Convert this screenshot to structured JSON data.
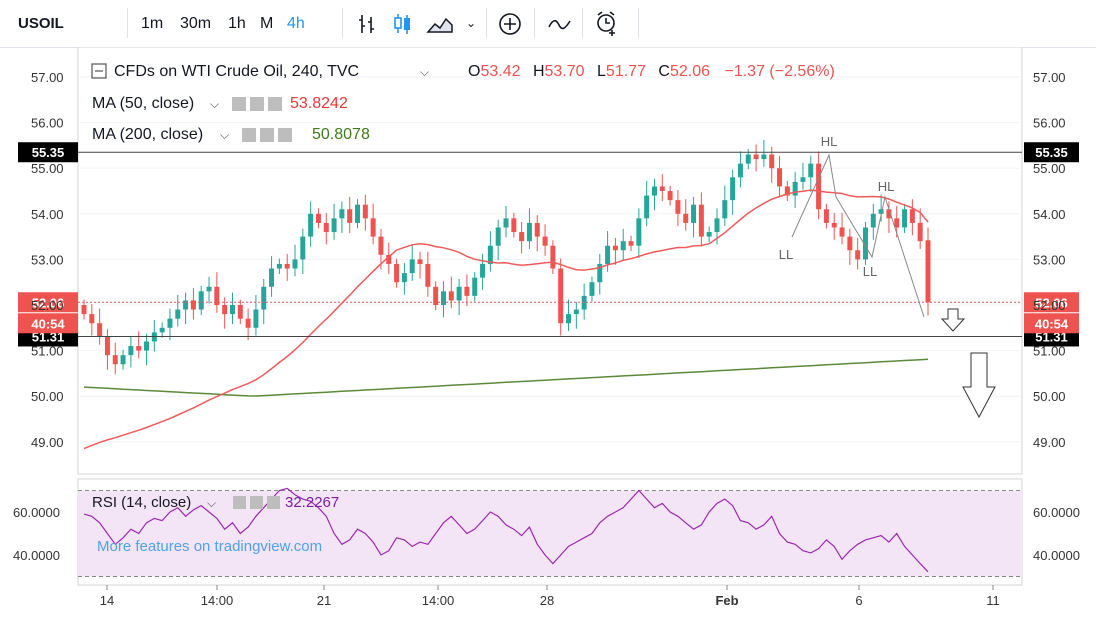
{
  "toolbar": {
    "symbol": "USOIL",
    "intervals": [
      "1m",
      "30m",
      "1h",
      "M",
      "4h"
    ],
    "active_interval": "4h",
    "chevron": "chevron-down-icon",
    "icons": [
      "bar-style-icon",
      "candle-style-icon",
      "area-style-icon",
      "add-indicator-icon",
      "compare-icon",
      "alert-icon"
    ]
  },
  "legend": {
    "title": "CFDs on WTI Crude Oil, 240, TVC",
    "o_label": "O",
    "o_value": "53.42",
    "h_label": "H",
    "h_value": "53.70",
    "l_label": "L",
    "l_value": "51.77",
    "c_label": "C",
    "c_value": "52.06",
    "change": "−1.37 (−2.56%)"
  },
  "indicators": {
    "ma50_label": "MA (50, close)",
    "ma50_value": "53.8242",
    "ma200_label": "MA (200, close)",
    "ma200_value": "50.8078",
    "rsi_label": "RSI (14, close)",
    "rsi_value": "32.2267"
  },
  "watermark": "More features on tradingview.com",
  "price_labels": {
    "upper_level": "55.35",
    "lower_level": "51.31",
    "last_price": "52.06",
    "countdown": "40:54"
  },
  "annotations": [
    "HL",
    "LL",
    "HL",
    "LL"
  ],
  "colors": {
    "up": "#26a69a",
    "down": "#ef5350",
    "ma50": "#f05a5a",
    "ma200": "#5a8a3a",
    "rsi": "#9c27b0",
    "rsi_band": "#f3e5f5",
    "accent": "#2196f3",
    "level_label": "#000000"
  },
  "chart_data": [
    {
      "type": "candlestick",
      "title": "CFDs on WTI Crude Oil, 240, TVC",
      "ylim": [
        48.5,
        57.5
      ],
      "y_ticks": [
        "57.00",
        "56.00",
        "55.00",
        "54.00",
        "53.00",
        "52.00",
        "51.00",
        "50.00",
        "49.00"
      ],
      "x_ticks": [
        "14",
        "14:00",
        "21",
        "14:00",
        "28",
        "Feb",
        "6",
        "11"
      ],
      "horizontal_levels": [
        55.35,
        51.31
      ],
      "close_series": [
        51.8,
        51.6,
        51.3,
        50.9,
        50.7,
        50.9,
        51.1,
        51.0,
        51.2,
        51.4,
        51.5,
        51.7,
        51.9,
        52.1,
        51.9,
        52.3,
        52.4,
        52.0,
        51.8,
        52.0,
        51.7,
        51.5,
        51.9,
        52.4,
        52.8,
        52.9,
        52.8,
        53.0,
        53.5,
        54.0,
        53.8,
        53.6,
        53.9,
        54.1,
        53.8,
        54.2,
        53.9,
        53.5,
        53.1,
        52.9,
        52.5,
        52.7,
        53.0,
        52.9,
        52.4,
        52.0,
        52.3,
        52.1,
        52.4,
        52.2,
        52.6,
        52.9,
        53.3,
        53.7,
        53.9,
        53.6,
        53.4,
        53.8,
        53.5,
        53.3,
        52.8,
        51.6,
        51.8,
        51.9,
        52.2,
        52.5,
        52.9,
        53.3,
        53.2,
        53.4,
        53.3,
        53.9,
        54.4,
        54.6,
        54.5,
        54.3,
        54.0,
        53.8,
        54.2,
        53.5,
        53.6,
        53.9,
        54.3,
        54.8,
        55.1,
        55.3,
        55.2,
        55.3,
        55.0,
        54.6,
        54.4,
        54.7,
        54.8,
        55.1,
        54.1,
        53.8,
        53.7,
        53.5,
        53.2,
        53.0,
        53.7,
        54.0,
        54.1,
        53.9,
        53.7,
        54.1,
        53.8,
        53.4,
        52.06
      ],
      "ma50_first_last": [
        48.85,
        53.82
      ],
      "ma200_first_last": [
        50.2,
        50.81
      ],
      "last": {
        "open": 53.42,
        "high": 53.7,
        "low": 51.77,
        "close": 52.06
      }
    },
    {
      "type": "line",
      "title": "RSI (14, close)",
      "ylim": [
        28,
        72
      ],
      "y_ticks": [
        "60.0000",
        "40.0000"
      ],
      "band": [
        30,
        70
      ],
      "last_value": 32.2267
    }
  ]
}
